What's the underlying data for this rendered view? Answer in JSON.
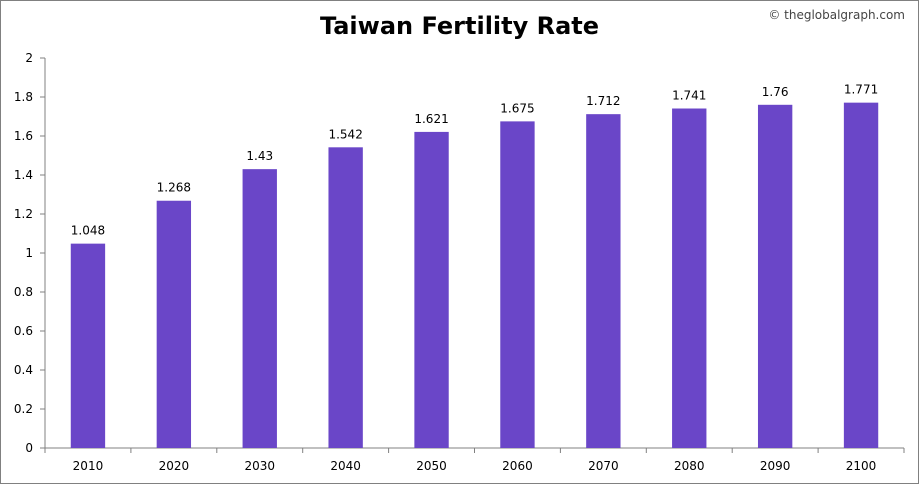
{
  "watermark": "© theglobalgraph.com",
  "chart_data": {
    "type": "bar",
    "title": "Taiwan Fertility Rate",
    "categories": [
      "2010",
      "2020",
      "2030",
      "2040",
      "2050",
      "2060",
      "2070",
      "2080",
      "2090",
      "2100"
    ],
    "values": [
      1.048,
      1.268,
      1.43,
      1.542,
      1.621,
      1.675,
      1.712,
      1.741,
      1.76,
      1.771
    ],
    "data_labels": [
      "1.048",
      "1.268",
      "1.43",
      "1.542",
      "1.621",
      "1.675",
      "1.712",
      "1.741",
      "1.76",
      "1.771"
    ],
    "y_ticks": [
      "0",
      "0.2",
      "0.4",
      "0.6",
      "0.8",
      "1",
      "1.2",
      "1.4",
      "1.6",
      "1.8",
      "2"
    ],
    "ylim": [
      0,
      2
    ],
    "xlabel": "",
    "ylabel": "",
    "bar_color": "#6a46c8",
    "grid": false,
    "legend": "none"
  }
}
